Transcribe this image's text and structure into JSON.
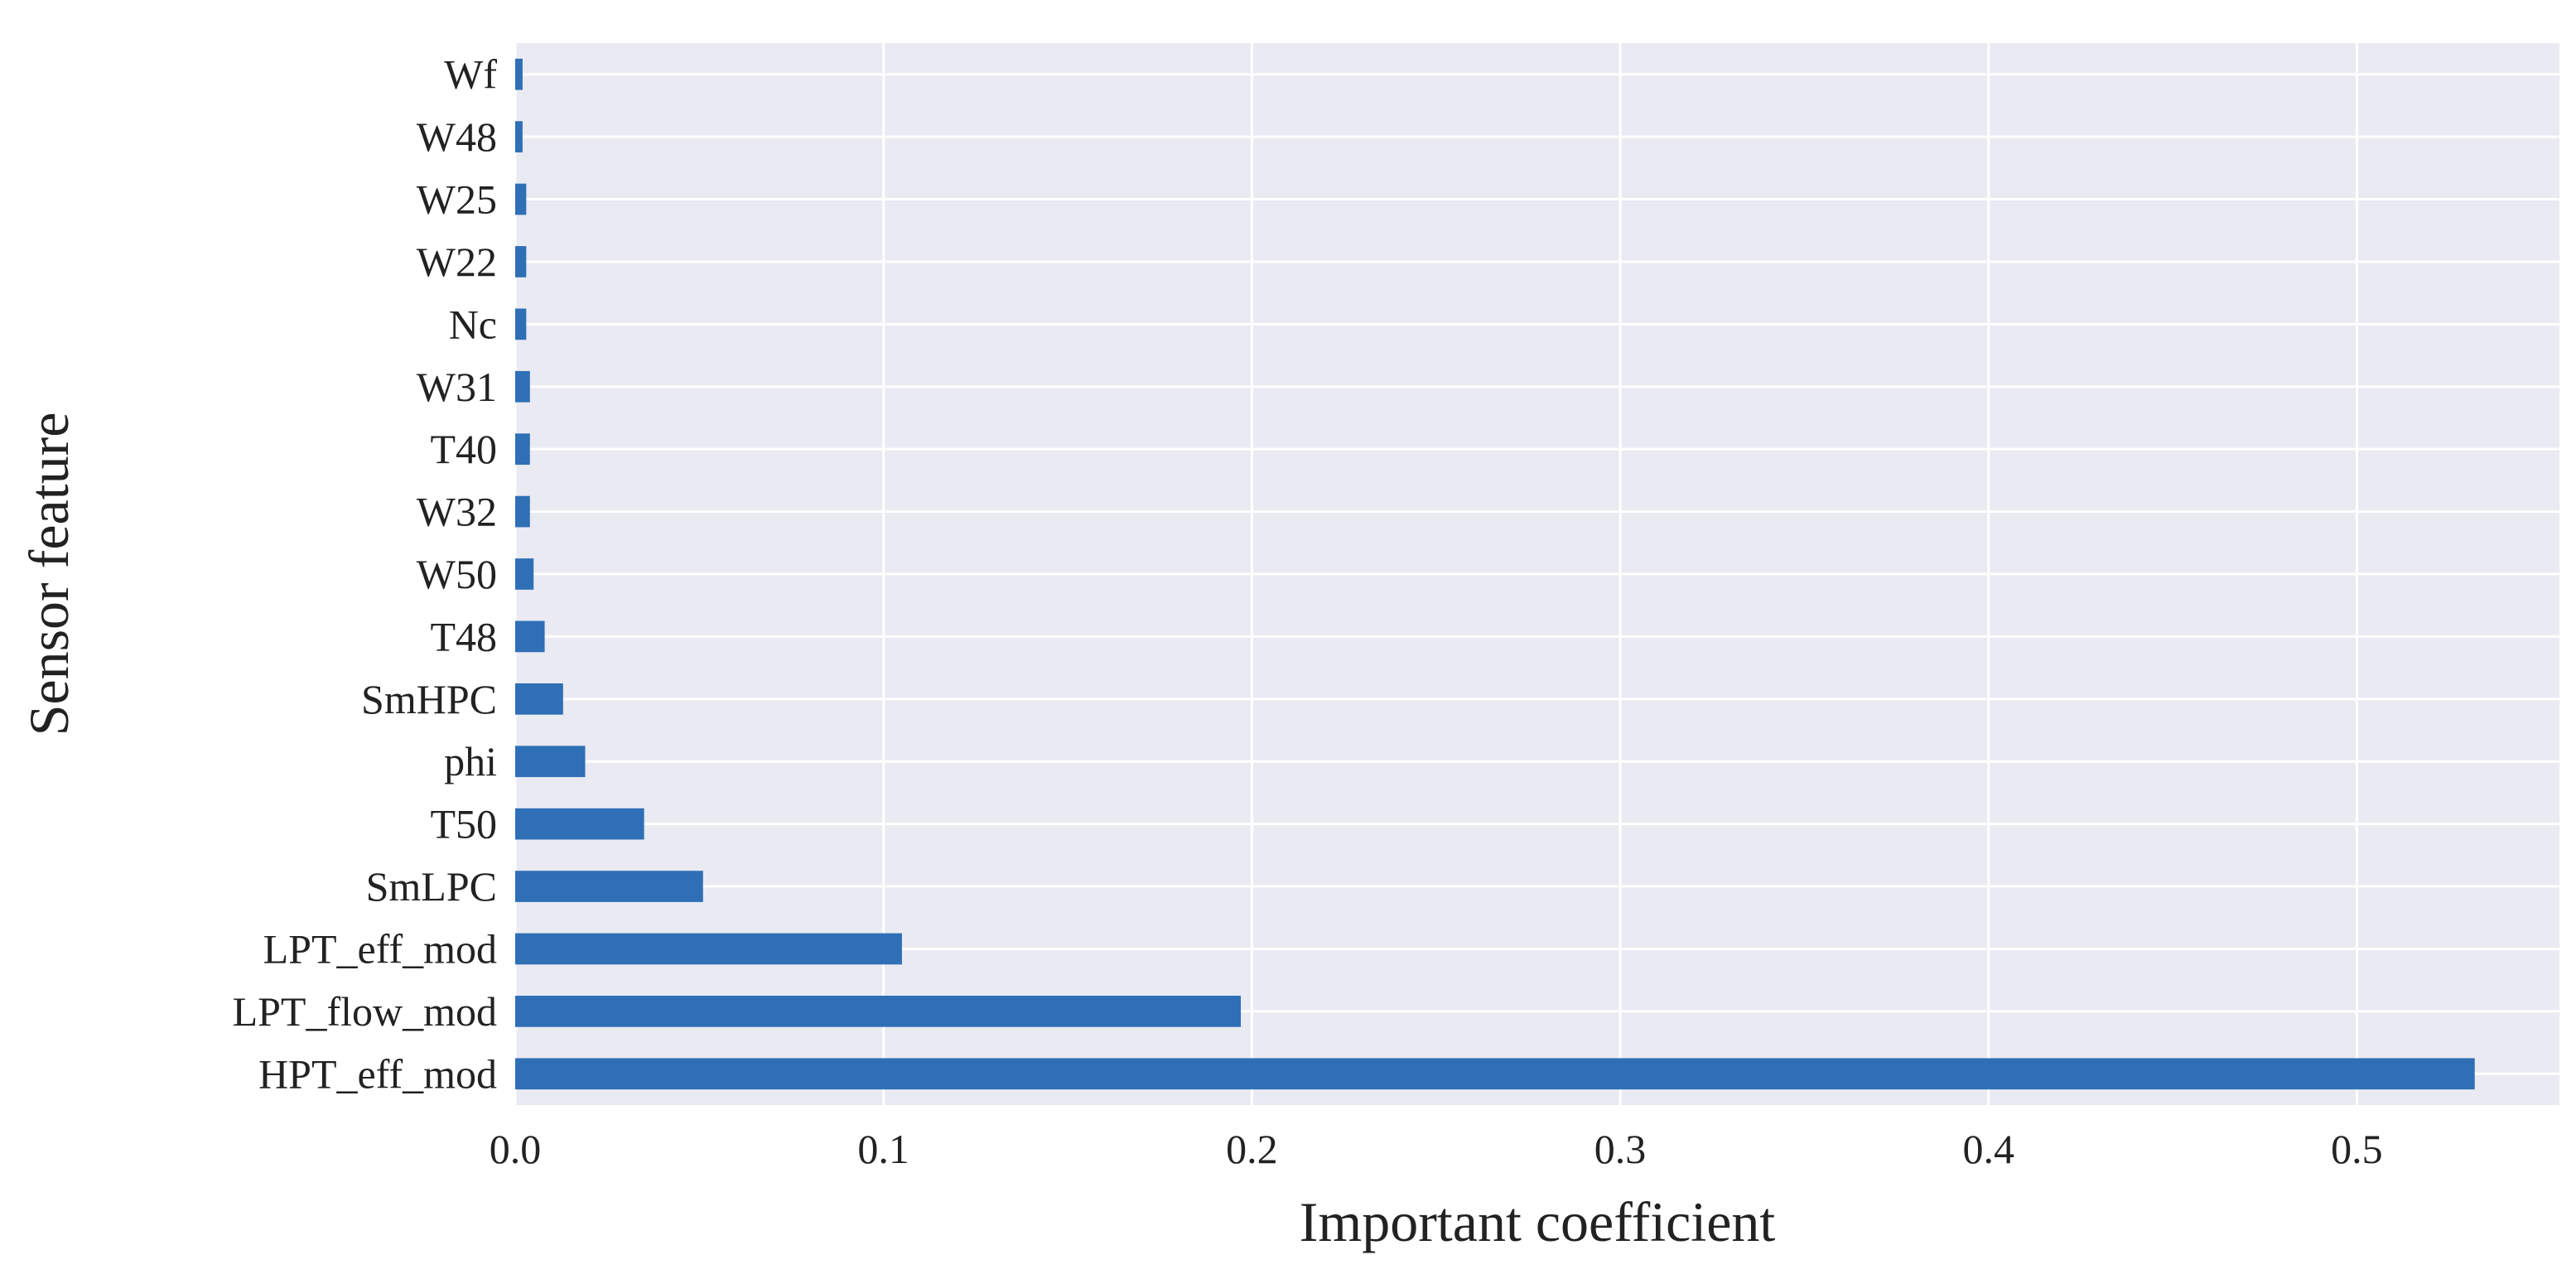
{
  "chart_data": {
    "type": "bar",
    "orientation": "horizontal",
    "title": "",
    "xlabel": "Important coefficient",
    "ylabel": "Sensor feature",
    "xlim": [
      0,
      0.555
    ],
    "xticks": [
      0.0,
      0.1,
      0.2,
      0.3,
      0.4,
      0.5
    ],
    "xtick_labels": [
      "0.0",
      "0.1",
      "0.2",
      "0.3",
      "0.4",
      "0.5"
    ],
    "grid": true,
    "legend": "none",
    "categories": [
      "Wf",
      "W48",
      "W25",
      "W22",
      "Nc",
      "W31",
      "T40",
      "W32",
      "W50",
      "T48",
      "SmHPC",
      "phi",
      "T50",
      "SmLPC",
      "LPT_eff_mod",
      "LPT_flow_mod",
      "HPT_eff_mod"
    ],
    "values": [
      0.002,
      0.002,
      0.003,
      0.003,
      0.003,
      0.004,
      0.004,
      0.004,
      0.005,
      0.008,
      0.013,
      0.019,
      0.035,
      0.051,
      0.105,
      0.197,
      0.532
    ],
    "colors": {
      "bar": "#2e6fb6",
      "plot_background": "#eaeaf2",
      "grid": "#ffffff"
    }
  }
}
